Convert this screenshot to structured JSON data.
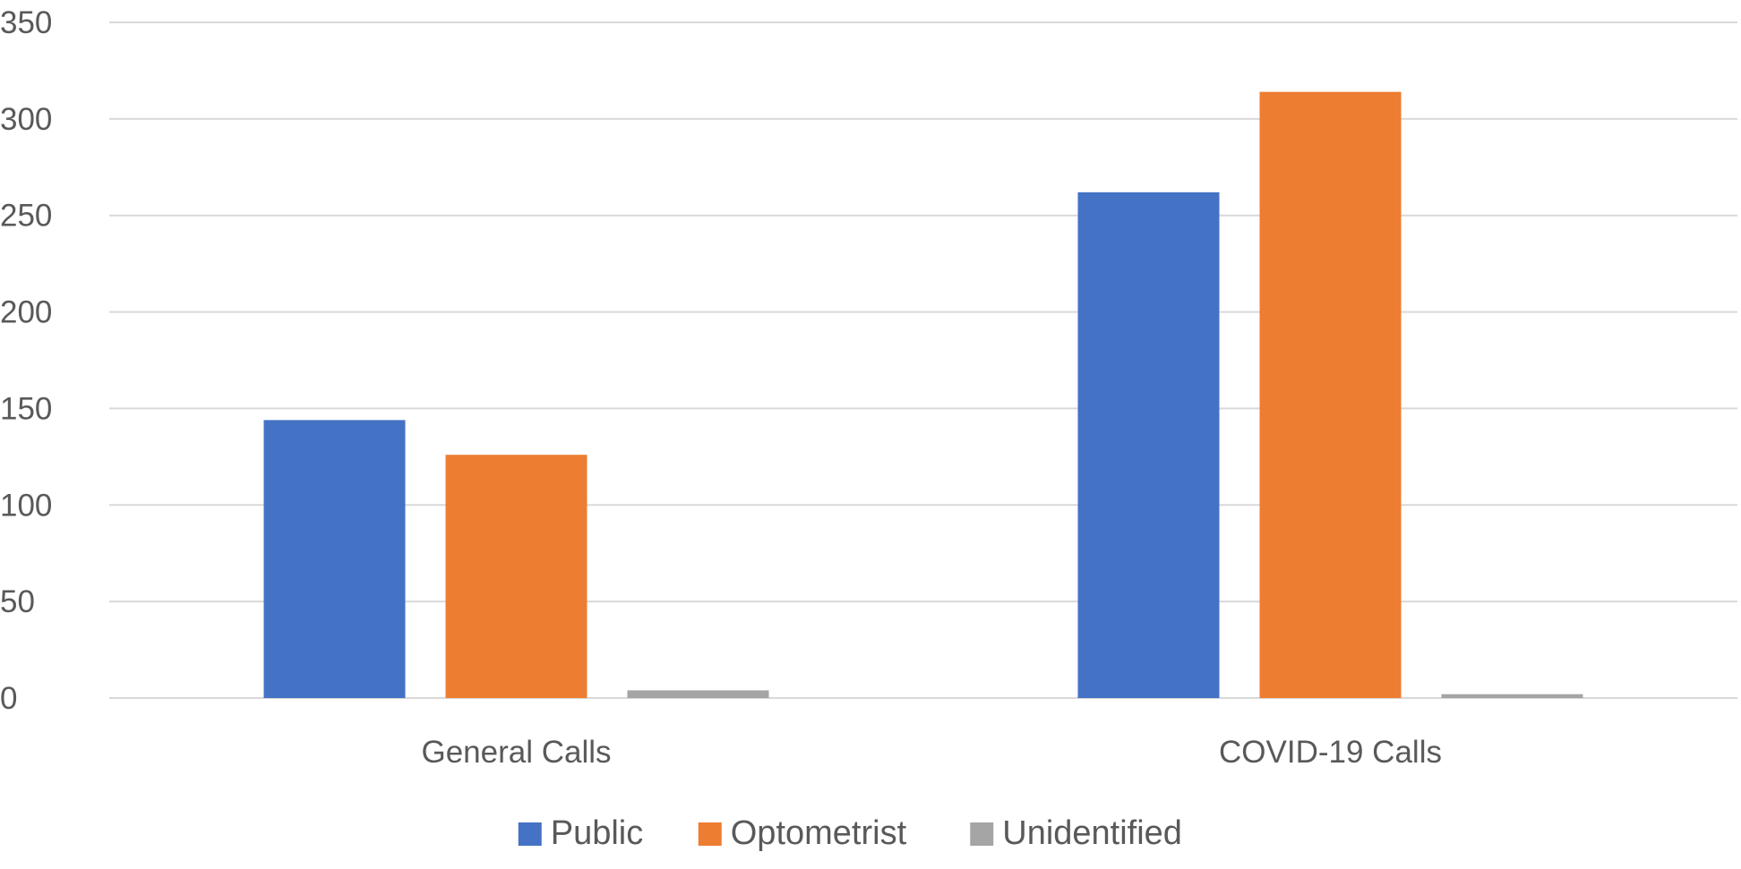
{
  "chart_data": {
    "type": "bar",
    "title": "",
    "xlabel": "",
    "ylabel": "",
    "categories": [
      "General Calls",
      "COVID-19 Calls"
    ],
    "series": [
      {
        "name": "Public",
        "values": [
          144,
          262
        ],
        "color": "#4472C4"
      },
      {
        "name": "Optometrist",
        "values": [
          126,
          314
        ],
        "color": "#ED7D31"
      },
      {
        "name": "Unidentified",
        "values": [
          4,
          2
        ],
        "color": "#A5A5A5"
      }
    ],
    "ylim": [
      0,
      350
    ],
    "yticks": [
      0,
      50,
      100,
      150,
      200,
      250,
      300,
      350
    ],
    "grid": true,
    "legend": "bottom-center"
  }
}
